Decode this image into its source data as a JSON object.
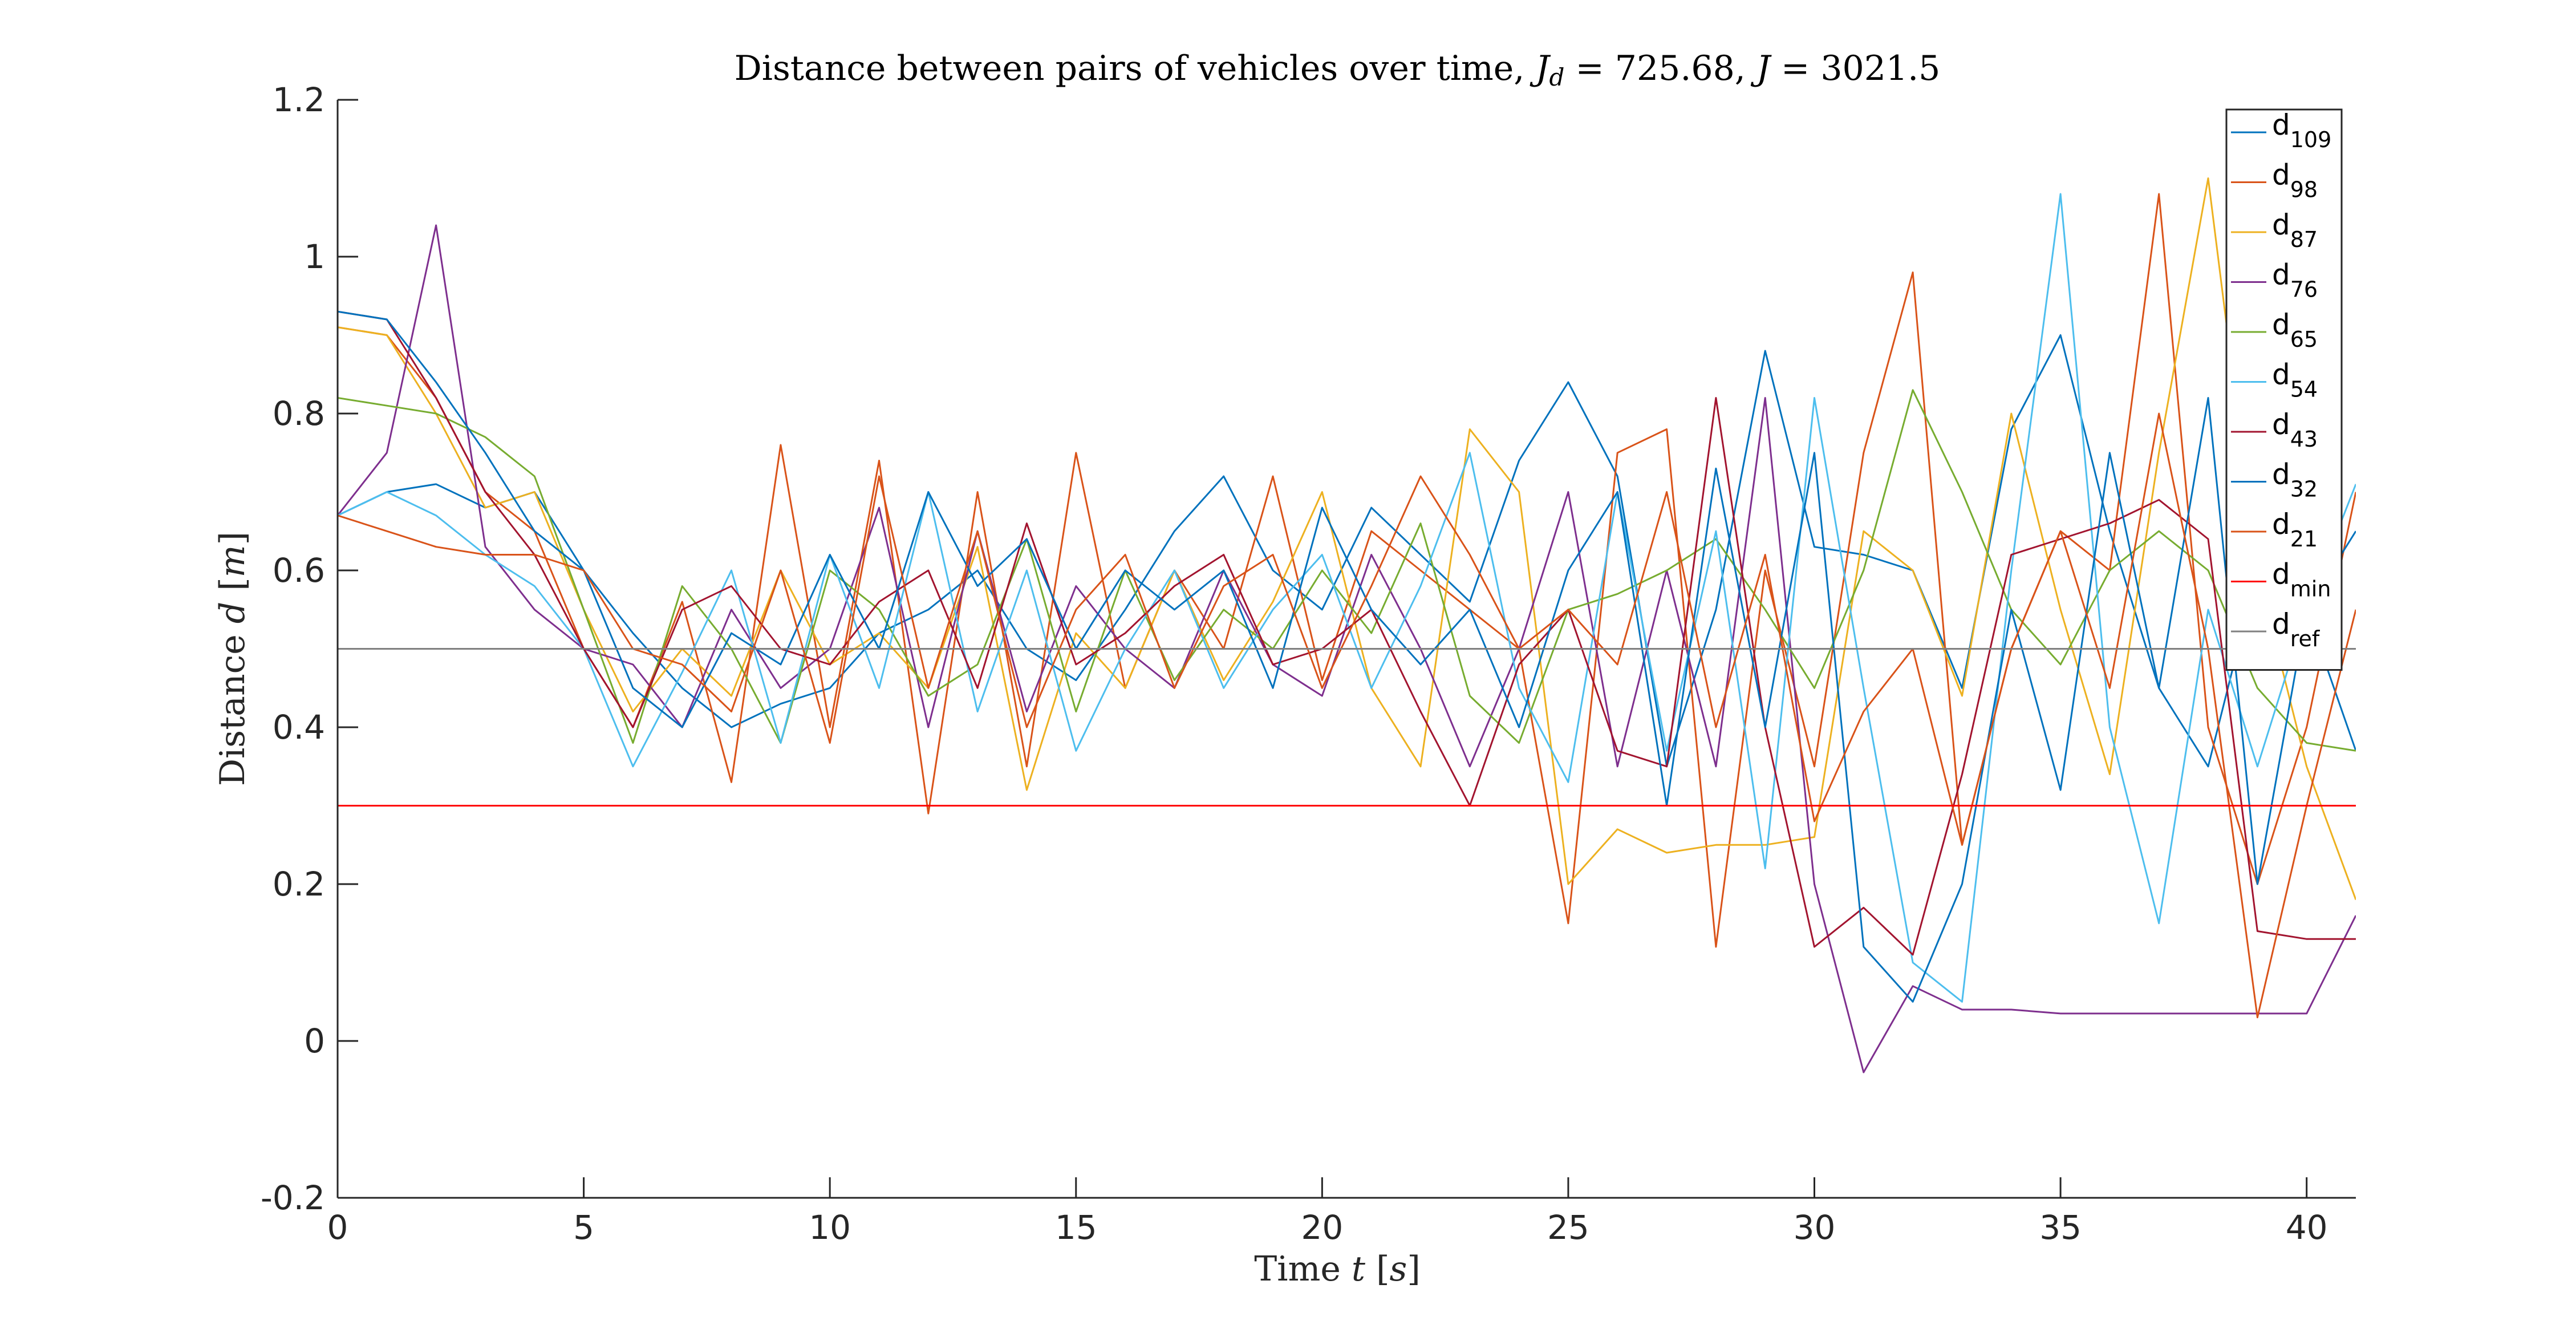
{
  "chart_data": {
    "type": "line",
    "title": "Distance between pairs of vehicles over time, J_d = 725.68, J = 3021.5",
    "title_parts": {
      "prefix": "Distance between pairs of vehicles over time, ",
      "jd_symbol": "J",
      "jd_sub": "d",
      "jd_value": " = 725.68, ",
      "j_symbol": "J",
      "j_value": " = 3021.5"
    },
    "xlabel": "Time t [s]",
    "xlabel_parts": {
      "text": "Time ",
      "var": "t",
      "unit_open": " [",
      "unit": "s",
      "unit_close": "]"
    },
    "ylabel": "Distance d [m]",
    "ylabel_parts": {
      "text": "Distance ",
      "var": "d",
      "unit_open": " [",
      "unit": "m",
      "unit_close": "]"
    },
    "xlim": [
      0,
      41
    ],
    "ylim": [
      -0.2,
      1.2
    ],
    "xticks": [
      0,
      5,
      10,
      15,
      20,
      25,
      30,
      35,
      40
    ],
    "xtick_labels": [
      "0",
      "5",
      "10",
      "15",
      "20",
      "25",
      "30",
      "35",
      "40"
    ],
    "yticks": [
      -0.2,
      0,
      0.2,
      0.4,
      0.6,
      0.8,
      1,
      1.2
    ],
    "ytick_labels": [
      "-0.2",
      "0",
      "0.2",
      "0.4",
      "0.6",
      "0.8",
      "1",
      "1.2"
    ],
    "grid": false,
    "legend_position": "top-right",
    "series": [
      {
        "name": "d",
        "sub": "109",
        "color": "#0072BD",
        "x": [
          0,
          1,
          2,
          3,
          4,
          5,
          6,
          7,
          8,
          9,
          10,
          11,
          12,
          13,
          14,
          15,
          16,
          17,
          18,
          19,
          20,
          21,
          22,
          23,
          24,
          25,
          26,
          27,
          28,
          29,
          30,
          31,
          32,
          33,
          34,
          35,
          36,
          37,
          38,
          39,
          40,
          41
        ],
        "y": [
          0.67,
          0.7,
          0.71,
          0.68,
          0.7,
          0.6,
          0.52,
          0.45,
          0.4,
          0.43,
          0.45,
          0.52,
          0.55,
          0.6,
          0.5,
          0.46,
          0.55,
          0.65,
          0.72,
          0.6,
          0.55,
          0.68,
          0.62,
          0.56,
          0.74,
          0.84,
          0.72,
          0.35,
          0.55,
          0.88,
          0.63,
          0.62,
          0.6,
          0.45,
          0.78,
          0.9,
          0.65,
          0.45,
          0.35,
          0.6,
          0.55,
          0.37
        ]
      },
      {
        "name": "d",
        "sub": "98",
        "color": "#D95319",
        "x": [
          0,
          1,
          2,
          3,
          4,
          5,
          6,
          7,
          8,
          9,
          10,
          11,
          12,
          13,
          14,
          15,
          16,
          17,
          18,
          19,
          20,
          21,
          22,
          23,
          24,
          25,
          26,
          27,
          28,
          29,
          30,
          31,
          32,
          33,
          34,
          35,
          36,
          37,
          38,
          39,
          40,
          41
        ],
        "y": [
          0.91,
          0.9,
          0.82,
          0.7,
          0.65,
          0.5,
          0.4,
          0.56,
          0.33,
          0.76,
          0.4,
          0.74,
          0.29,
          0.7,
          0.35,
          0.75,
          0.45,
          0.6,
          0.5,
          0.72,
          0.46,
          0.65,
          0.6,
          0.55,
          0.5,
          0.15,
          0.75,
          0.78,
          0.12,
          0.6,
          0.35,
          0.75,
          0.98,
          0.25,
          0.5,
          0.65,
          0.6,
          1.08,
          0.4,
          0.2,
          0.4,
          0.7
        ]
      },
      {
        "name": "d",
        "sub": "87",
        "color": "#EDB120",
        "x": [
          0,
          1,
          2,
          3,
          4,
          5,
          6,
          7,
          8,
          9,
          10,
          11,
          12,
          13,
          14,
          15,
          16,
          17,
          18,
          19,
          20,
          21,
          22,
          23,
          24,
          25,
          26,
          27,
          28,
          29,
          30,
          31,
          32,
          33,
          34,
          35,
          36,
          37,
          38,
          39,
          40,
          41
        ],
        "y": [
          0.91,
          0.9,
          0.8,
          0.68,
          0.7,
          0.55,
          0.42,
          0.5,
          0.44,
          0.6,
          0.48,
          0.52,
          0.45,
          0.63,
          0.32,
          0.52,
          0.45,
          0.6,
          0.46,
          0.56,
          0.7,
          0.45,
          0.35,
          0.78,
          0.7,
          0.2,
          0.27,
          0.24,
          0.25,
          0.25,
          0.26,
          0.65,
          0.6,
          0.44,
          0.8,
          0.55,
          0.34,
          0.75,
          1.1,
          0.6,
          0.35,
          0.18
        ]
      },
      {
        "name": "d",
        "sub": "76",
        "color": "#7E2F8E",
        "x": [
          0,
          1,
          2,
          3,
          4,
          5,
          6,
          7,
          8,
          9,
          10,
          11,
          12,
          13,
          14,
          15,
          16,
          17,
          18,
          19,
          20,
          21,
          22,
          23,
          24,
          25,
          26,
          27,
          28,
          29,
          30,
          31,
          32,
          33,
          34,
          35,
          36,
          37,
          38,
          39,
          40,
          41
        ],
        "y": [
          0.67,
          0.75,
          1.04,
          0.63,
          0.55,
          0.5,
          0.48,
          0.4,
          0.55,
          0.45,
          0.5,
          0.68,
          0.4,
          0.65,
          0.42,
          0.58,
          0.5,
          0.45,
          0.6,
          0.48,
          0.44,
          0.62,
          0.5,
          0.35,
          0.5,
          0.7,
          0.35,
          0.6,
          0.35,
          0.82,
          0.2,
          -0.04,
          0.07,
          0.04,
          0.04,
          0.035,
          0.035,
          0.035,
          0.035,
          0.035,
          0.035,
          0.16
        ]
      },
      {
        "name": "d",
        "sub": "65",
        "color": "#77AC30",
        "x": [
          0,
          1,
          2,
          3,
          4,
          5,
          6,
          7,
          8,
          9,
          10,
          11,
          12,
          13,
          14,
          15,
          16,
          17,
          18,
          19,
          20,
          21,
          22,
          23,
          24,
          25,
          26,
          27,
          28,
          29,
          30,
          31,
          32,
          33,
          34,
          35,
          36,
          37,
          38,
          39,
          40,
          41
        ],
        "y": [
          0.82,
          0.81,
          0.8,
          0.77,
          0.72,
          0.55,
          0.38,
          0.58,
          0.5,
          0.38,
          0.6,
          0.55,
          0.44,
          0.48,
          0.64,
          0.42,
          0.6,
          0.46,
          0.55,
          0.5,
          0.6,
          0.52,
          0.66,
          0.44,
          0.38,
          0.55,
          0.57,
          0.6,
          0.64,
          0.55,
          0.45,
          0.6,
          0.83,
          0.7,
          0.55,
          0.48,
          0.6,
          0.65,
          0.6,
          0.45,
          0.38,
          0.37
        ]
      },
      {
        "name": "d",
        "sub": "54",
        "color": "#4DBEEE",
        "x": [
          0,
          1,
          2,
          3,
          4,
          5,
          6,
          7,
          8,
          9,
          10,
          11,
          12,
          13,
          14,
          15,
          16,
          17,
          18,
          19,
          20,
          21,
          22,
          23,
          24,
          25,
          26,
          27,
          28,
          29,
          30,
          31,
          32,
          33,
          34,
          35,
          36,
          37,
          38,
          39,
          40,
          41
        ],
        "y": [
          0.67,
          0.7,
          0.67,
          0.62,
          0.58,
          0.5,
          0.35,
          0.47,
          0.6,
          0.38,
          0.62,
          0.45,
          0.7,
          0.42,
          0.6,
          0.37,
          0.5,
          0.6,
          0.45,
          0.55,
          0.62,
          0.45,
          0.58,
          0.75,
          0.45,
          0.33,
          0.7,
          0.37,
          0.65,
          0.22,
          0.82,
          0.45,
          0.1,
          0.05,
          0.6,
          1.08,
          0.4,
          0.15,
          0.55,
          0.35,
          0.55,
          0.71
        ]
      },
      {
        "name": "d",
        "sub": "43",
        "color": "#A2142F",
        "x": [
          0,
          1,
          2,
          3,
          4,
          5,
          6,
          7,
          8,
          9,
          10,
          11,
          12,
          13,
          14,
          15,
          16,
          17,
          18,
          19,
          20,
          21,
          22,
          23,
          24,
          25,
          26,
          27,
          28,
          29,
          30,
          31,
          32,
          33,
          34,
          35,
          36,
          37,
          38,
          39,
          40,
          41
        ],
        "y": [
          0.93,
          0.92,
          0.82,
          0.7,
          0.62,
          0.5,
          0.4,
          0.55,
          0.58,
          0.5,
          0.48,
          0.56,
          0.6,
          0.45,
          0.66,
          0.48,
          0.52,
          0.58,
          0.62,
          0.48,
          0.5,
          0.55,
          0.42,
          0.3,
          0.48,
          0.55,
          0.37,
          0.35,
          0.82,
          0.4,
          0.12,
          0.17,
          0.11,
          0.34,
          0.62,
          0.64,
          0.66,
          0.69,
          0.64,
          0.14,
          0.13,
          0.13
        ]
      },
      {
        "name": "d",
        "sub": "32",
        "color": "#0072BD",
        "x": [
          0,
          1,
          2,
          3,
          4,
          5,
          6,
          7,
          8,
          9,
          10,
          11,
          12,
          13,
          14,
          15,
          16,
          17,
          18,
          19,
          20,
          21,
          22,
          23,
          24,
          25,
          26,
          27,
          28,
          29,
          30,
          31,
          32,
          33,
          34,
          35,
          36,
          37,
          38,
          39,
          40,
          41
        ],
        "y": [
          0.93,
          0.92,
          0.84,
          0.75,
          0.65,
          0.6,
          0.45,
          0.4,
          0.52,
          0.48,
          0.62,
          0.5,
          0.7,
          0.58,
          0.64,
          0.5,
          0.6,
          0.55,
          0.6,
          0.45,
          0.68,
          0.55,
          0.48,
          0.55,
          0.4,
          0.6,
          0.7,
          0.3,
          0.73,
          0.4,
          0.75,
          0.12,
          0.05,
          0.2,
          0.55,
          0.32,
          0.75,
          0.45,
          0.82,
          0.2,
          0.55,
          0.65
        ]
      },
      {
        "name": "d",
        "sub": "21",
        "color": "#D95319",
        "x": [
          0,
          1,
          2,
          3,
          4,
          5,
          6,
          7,
          8,
          9,
          10,
          11,
          12,
          13,
          14,
          15,
          16,
          17,
          18,
          19,
          20,
          21,
          22,
          23,
          24,
          25,
          26,
          27,
          28,
          29,
          30,
          31,
          32,
          33,
          34,
          35,
          36,
          37,
          38,
          39,
          40,
          41
        ],
        "y": [
          0.67,
          0.65,
          0.63,
          0.62,
          0.62,
          0.6,
          0.5,
          0.48,
          0.42,
          0.6,
          0.38,
          0.72,
          0.45,
          0.65,
          0.4,
          0.55,
          0.62,
          0.45,
          0.58,
          0.62,
          0.45,
          0.58,
          0.72,
          0.62,
          0.5,
          0.55,
          0.48,
          0.7,
          0.4,
          0.62,
          0.28,
          0.42,
          0.5,
          0.25,
          0.5,
          0.65,
          0.45,
          0.8,
          0.5,
          0.03,
          0.3,
          0.55
        ]
      },
      {
        "name": "d",
        "sub": "min",
        "color": "#FF0000",
        "x": [
          0,
          41
        ],
        "y": [
          0.3,
          0.3
        ]
      },
      {
        "name": "d",
        "sub": "ref",
        "color": "#808080",
        "x": [
          0,
          41
        ],
        "y": [
          0.5,
          0.5
        ]
      }
    ]
  }
}
